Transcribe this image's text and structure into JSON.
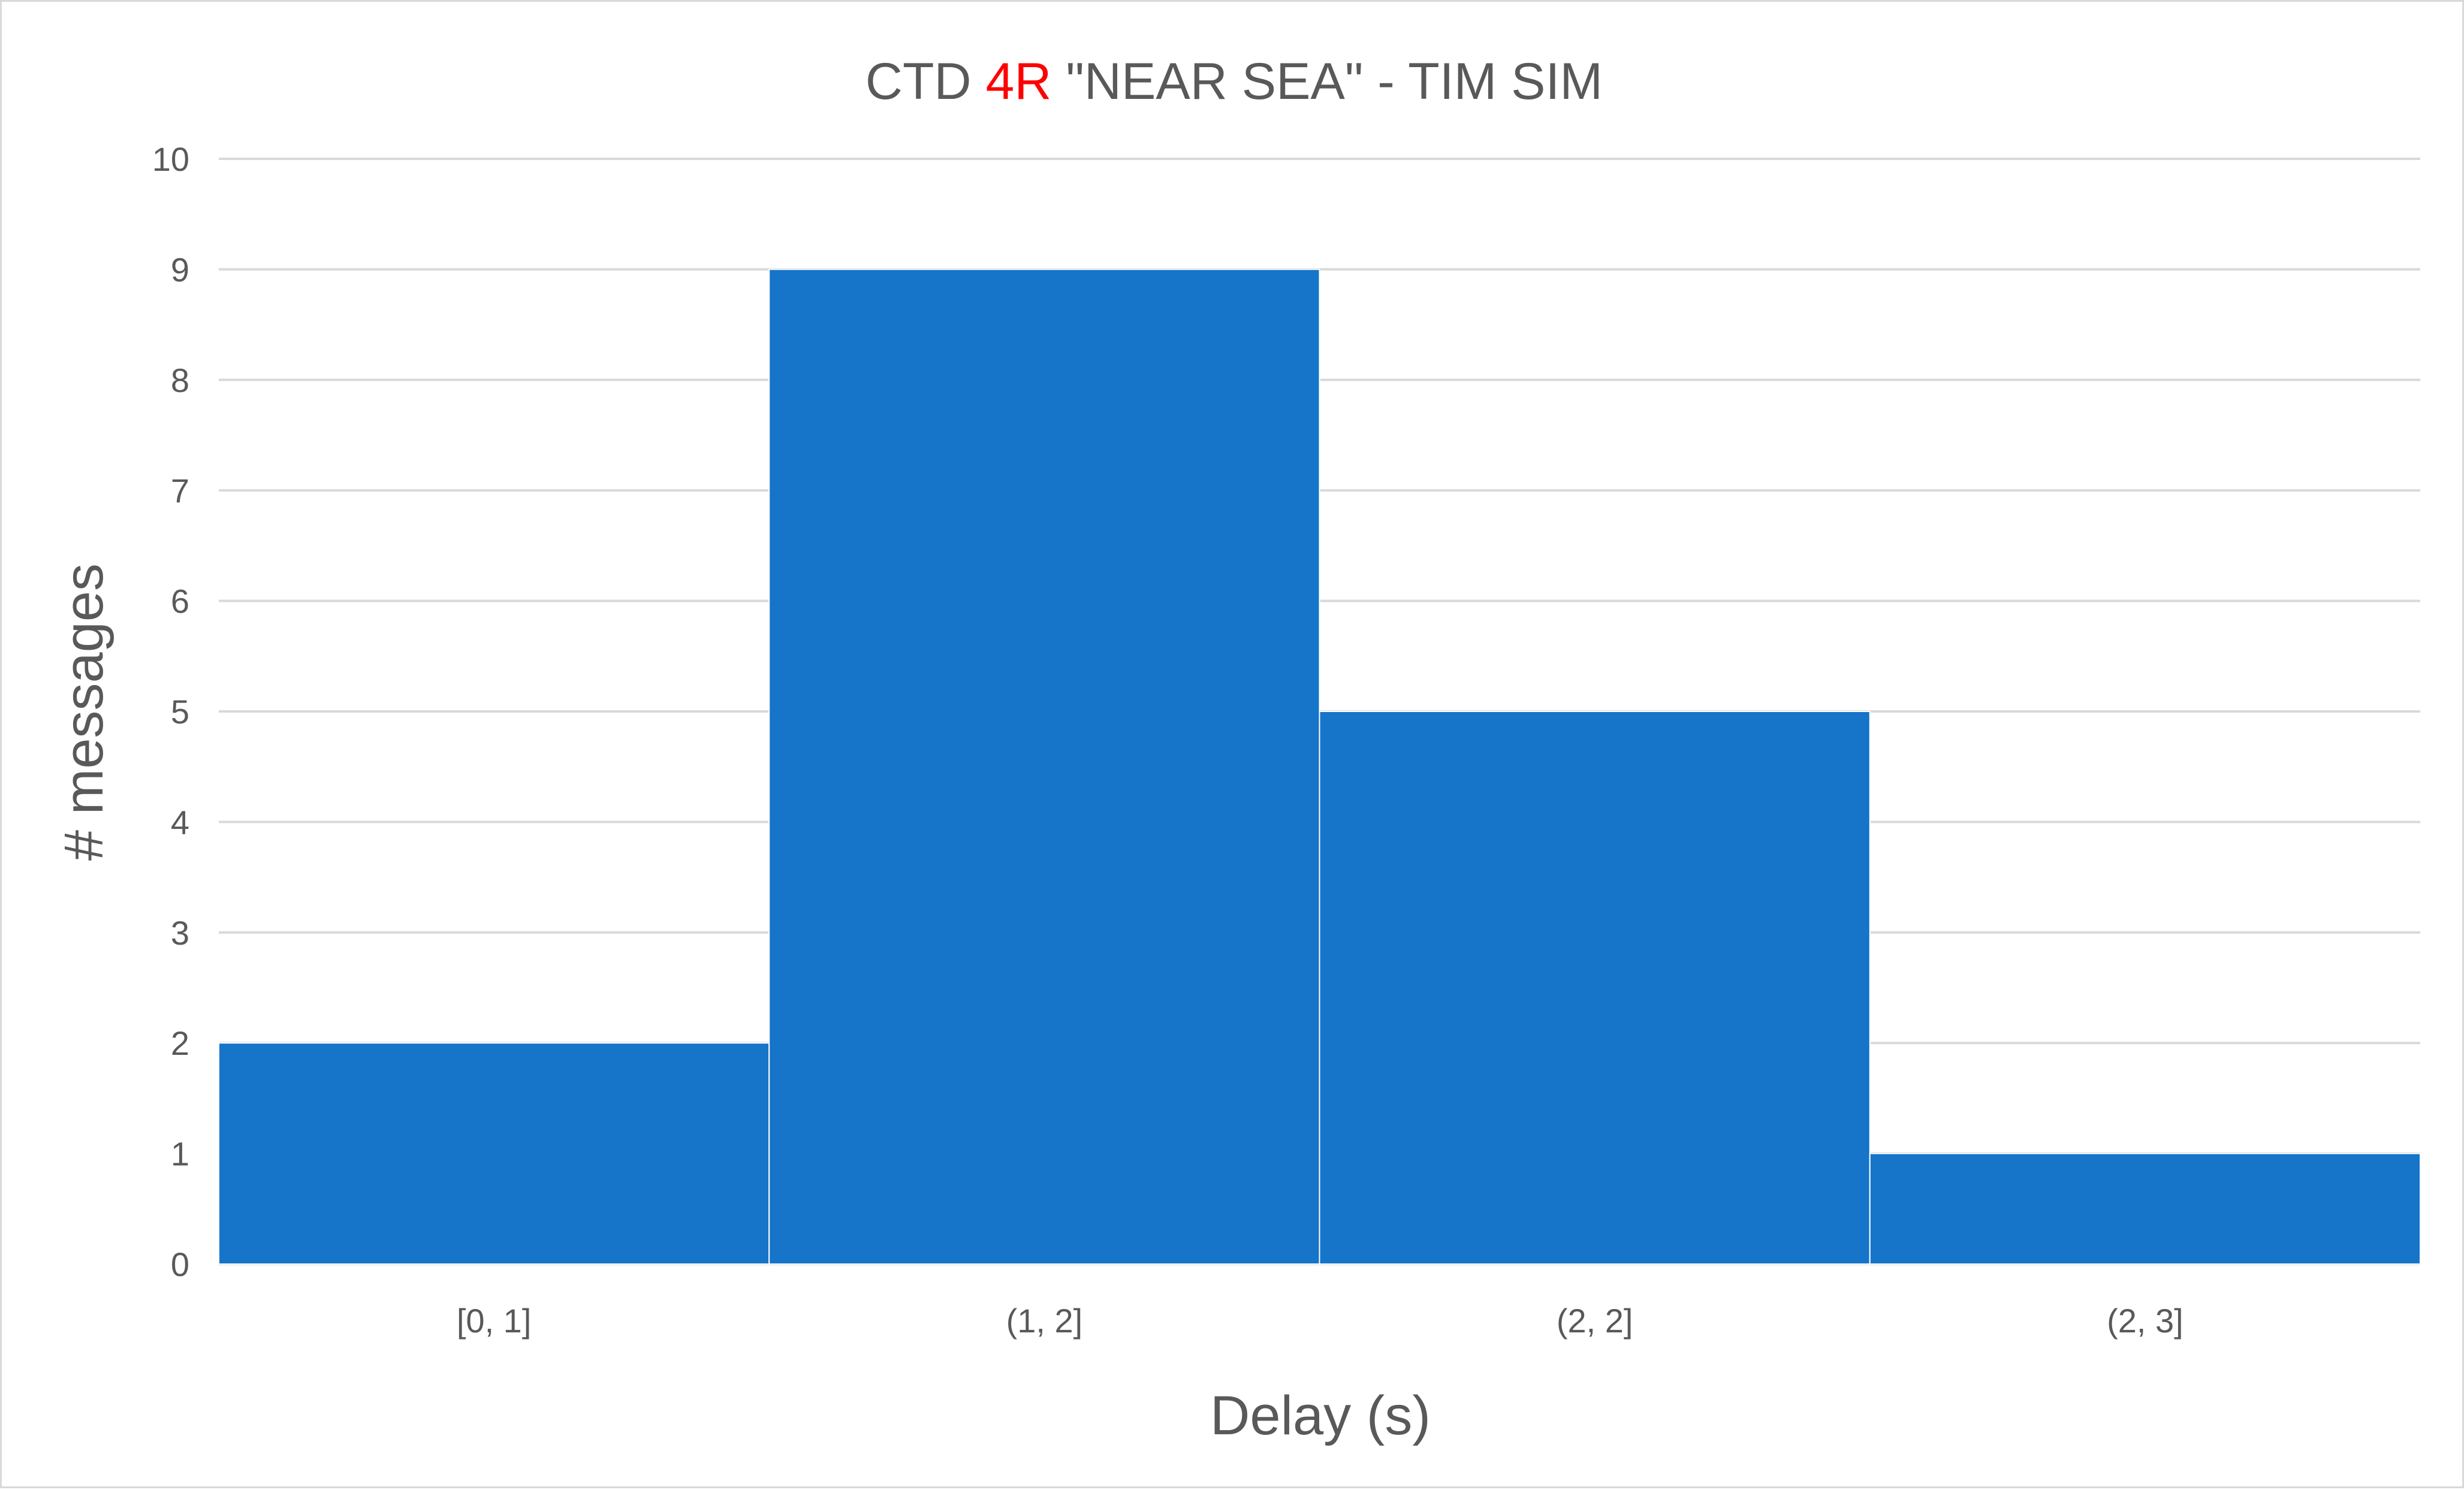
{
  "chart_data": {
    "type": "bar",
    "title": {
      "prefix": "CTD ",
      "highlight": "4R",
      "suffix": " \"NEAR SEA\" - TIM SIM",
      "highlight_color": "#ff0000",
      "color": "#595959"
    },
    "categories": [
      "[0, 1]",
      "(1, 2]",
      "(2, 2]",
      "(2, 3]"
    ],
    "values": [
      2,
      9,
      5,
      1
    ],
    "xlabel": "Delay (s)",
    "ylabel": "# messages",
    "ylim": [
      0,
      10
    ],
    "yticks": [
      "0",
      "1",
      "2",
      "3",
      "4",
      "5",
      "6",
      "7",
      "8",
      "9",
      "10"
    ],
    "bar_color": "#1674c9",
    "grid": true,
    "grid_color": "#d9d9d9",
    "legend": "none"
  }
}
